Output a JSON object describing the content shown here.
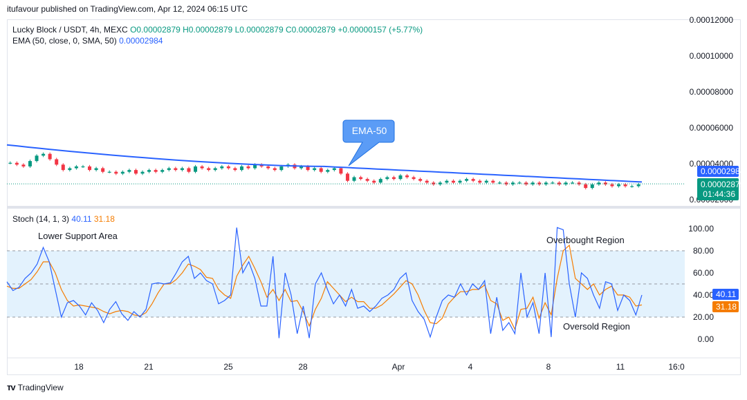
{
  "header": {
    "publisher": "itufavour published on TradingView.com, Apr 12, 2024 06:15 UTC"
  },
  "legend": {
    "symbol": "Lucky Block / USDT, 4h, MEXC",
    "ohlc": {
      "O": "O0.00002879",
      "H": "H0.00002879",
      "L": "L0.00002879",
      "C": "C0.00002879",
      "change": "+0.00000157 (+5.77%)"
    },
    "ema_label": "EMA (50, close, 0, SMA, 50)",
    "ema_value": "0.00002984",
    "stoch_label": "Stoch (14, 1, 3)",
    "stoch_k": "40.11",
    "stoch_d": "31.18"
  },
  "price_tags": {
    "ema": "0.00002984",
    "close": "0.00002879",
    "countdown": "01:44:36"
  },
  "annotations": {
    "ema_callout": "EMA-50",
    "lower_support": "Lower Support Area",
    "overbought": "Overbought Region",
    "oversold": "Oversold Region"
  },
  "footer": {
    "brand": "TradingView"
  },
  "colors": {
    "ema": "#2962ff",
    "up": "#089981",
    "down": "#f23645",
    "stoch_k": "#2962ff",
    "stoch_d": "#f57c00",
    "band": "#e3f2fd"
  },
  "chart_data": [
    {
      "type": "candlestick",
      "price_axis_ticks": [
        "0.00012000",
        "0.00010000",
        "0.00008000",
        "0.00006000",
        "0.00004000",
        "0.00002000"
      ],
      "price_axis_values": [
        0.00012,
        0.0001,
        8e-05,
        6e-05,
        4e-05,
        2e-05
      ],
      "x_tick_labels": [
        "18",
        "21",
        "25",
        "28",
        "Apr",
        "4",
        "8",
        "11",
        "16:0"
      ],
      "ema50": {
        "start": 5.05e-05,
        "mid": 3.85e-05,
        "end": 2.984e-05
      },
      "last_close": 2.879e-05,
      "closes": [
        4.05e-05,
        3.95e-05,
        3.85e-05,
        4.15e-05,
        4.45e-05,
        4.55e-05,
        4.25e-05,
        3.95e-05,
        3.65e-05,
        3.75e-05,
        3.85e-05,
        3.85e-05,
        3.65e-05,
        3.75e-05,
        3.55e-05,
        3.55e-05,
        3.45e-05,
        3.55e-05,
        3.65e-05,
        3.45e-05,
        3.55e-05,
        3.65e-05,
        3.55e-05,
        3.65e-05,
        3.75e-05,
        3.65e-05,
        3.75e-05,
        3.55e-05,
        3.85e-05,
        3.75e-05,
        3.65e-05,
        3.75e-05,
        3.85e-05,
        3.75e-05,
        3.65e-05,
        3.85e-05,
        3.75e-05,
        3.95e-05,
        3.85e-05,
        3.75e-05,
        3.65e-05,
        3.85e-05,
        3.95e-05,
        3.75e-05,
        3.85e-05,
        3.65e-05,
        3.75e-05,
        3.55e-05,
        3.65e-05,
        3.75e-05,
        3.45e-05,
        3.05e-05,
        3.25e-05,
        3.15e-05,
        3.05e-05,
        2.95e-05,
        3.15e-05,
        3.25e-05,
        3.15e-05,
        3.35e-05,
        3.25e-05,
        3.15e-05,
        3.05e-05,
        2.95e-05,
        2.85e-05,
        2.95e-05,
        3.05e-05,
        2.95e-05,
        3.05e-05,
        3.15e-05,
        3.05e-05,
        2.95e-05,
        3.05e-05,
        2.95e-05,
        2.95e-05,
        2.85e-05,
        2.95e-05,
        2.95e-05,
        2.85e-05,
        2.95e-05,
        2.85e-05,
        2.95e-05,
        2.95e-05,
        2.85e-05,
        2.95e-05,
        2.95e-05,
        2.85e-05,
        2.65e-05,
        2.85e-05,
        2.95e-05,
        2.85e-05,
        2.75e-05,
        2.85e-05,
        2.75e-05,
        2.75e-05,
        2.85e-05
      ]
    },
    {
      "type": "line",
      "name": "Stoch (14, 1, 3)",
      "y_ticks": [
        100,
        80,
        60,
        40,
        20,
        0
      ],
      "y_tick_labels": [
        "100.00",
        "80.00",
        "60.00",
        "40.00",
        "20.00",
        "0.00"
      ],
      "ylim": [
        -6,
        108
      ],
      "bands": {
        "upper": 80,
        "middle": 50,
        "lower": 20
      },
      "k_values": [
        52,
        44,
        47,
        55,
        60,
        68,
        83,
        70,
        45,
        20,
        33,
        35,
        30,
        22,
        33,
        26,
        15,
        27,
        34,
        23,
        17,
        25,
        20,
        27,
        50,
        51,
        50,
        51,
        60,
        70,
        75,
        55,
        60,
        53,
        50,
        32,
        35,
        40,
        101,
        60,
        70,
        55,
        30,
        30,
        75,
        1,
        60,
        40,
        5,
        30,
        1,
        50,
        60,
        45,
        32,
        40,
        30,
        45,
        28,
        30,
        25,
        30,
        37,
        40,
        45,
        55,
        60,
        35,
        25,
        18,
        2,
        20,
        35,
        40,
        38,
        50,
        40,
        50,
        45,
        53,
        5,
        38,
        8,
        15,
        5,
        60,
        20,
        33,
        5,
        60,
        2,
        101,
        99,
        50,
        20,
        60,
        55,
        40,
        28,
        52,
        50,
        26,
        40,
        35,
        22,
        40
      ],
      "d_values": [
        48,
        46,
        46,
        50,
        54,
        61,
        70,
        70,
        60,
        45,
        35,
        30,
        31,
        30,
        29,
        28,
        25,
        23,
        25,
        26,
        25,
        22,
        21,
        24,
        32,
        42,
        50,
        50,
        54,
        60,
        68,
        66,
        63,
        56,
        55,
        45,
        40,
        37,
        57,
        67,
        75,
        64,
        52,
        38,
        45,
        35,
        45,
        34,
        35,
        25,
        12,
        27,
        37,
        52,
        46,
        40,
        34,
        38,
        34,
        34,
        28,
        28,
        31,
        36,
        41,
        47,
        53,
        50,
        40,
        26,
        15,
        14,
        19,
        32,
        38,
        43,
        43,
        45,
        45,
        49,
        35,
        32,
        17,
        20,
        9,
        27,
        28,
        38,
        19,
        33,
        22,
        55,
        80,
        85,
        55,
        50,
        45,
        50,
        40,
        45,
        48,
        40,
        40,
        38,
        30,
        31
      ]
    }
  ]
}
